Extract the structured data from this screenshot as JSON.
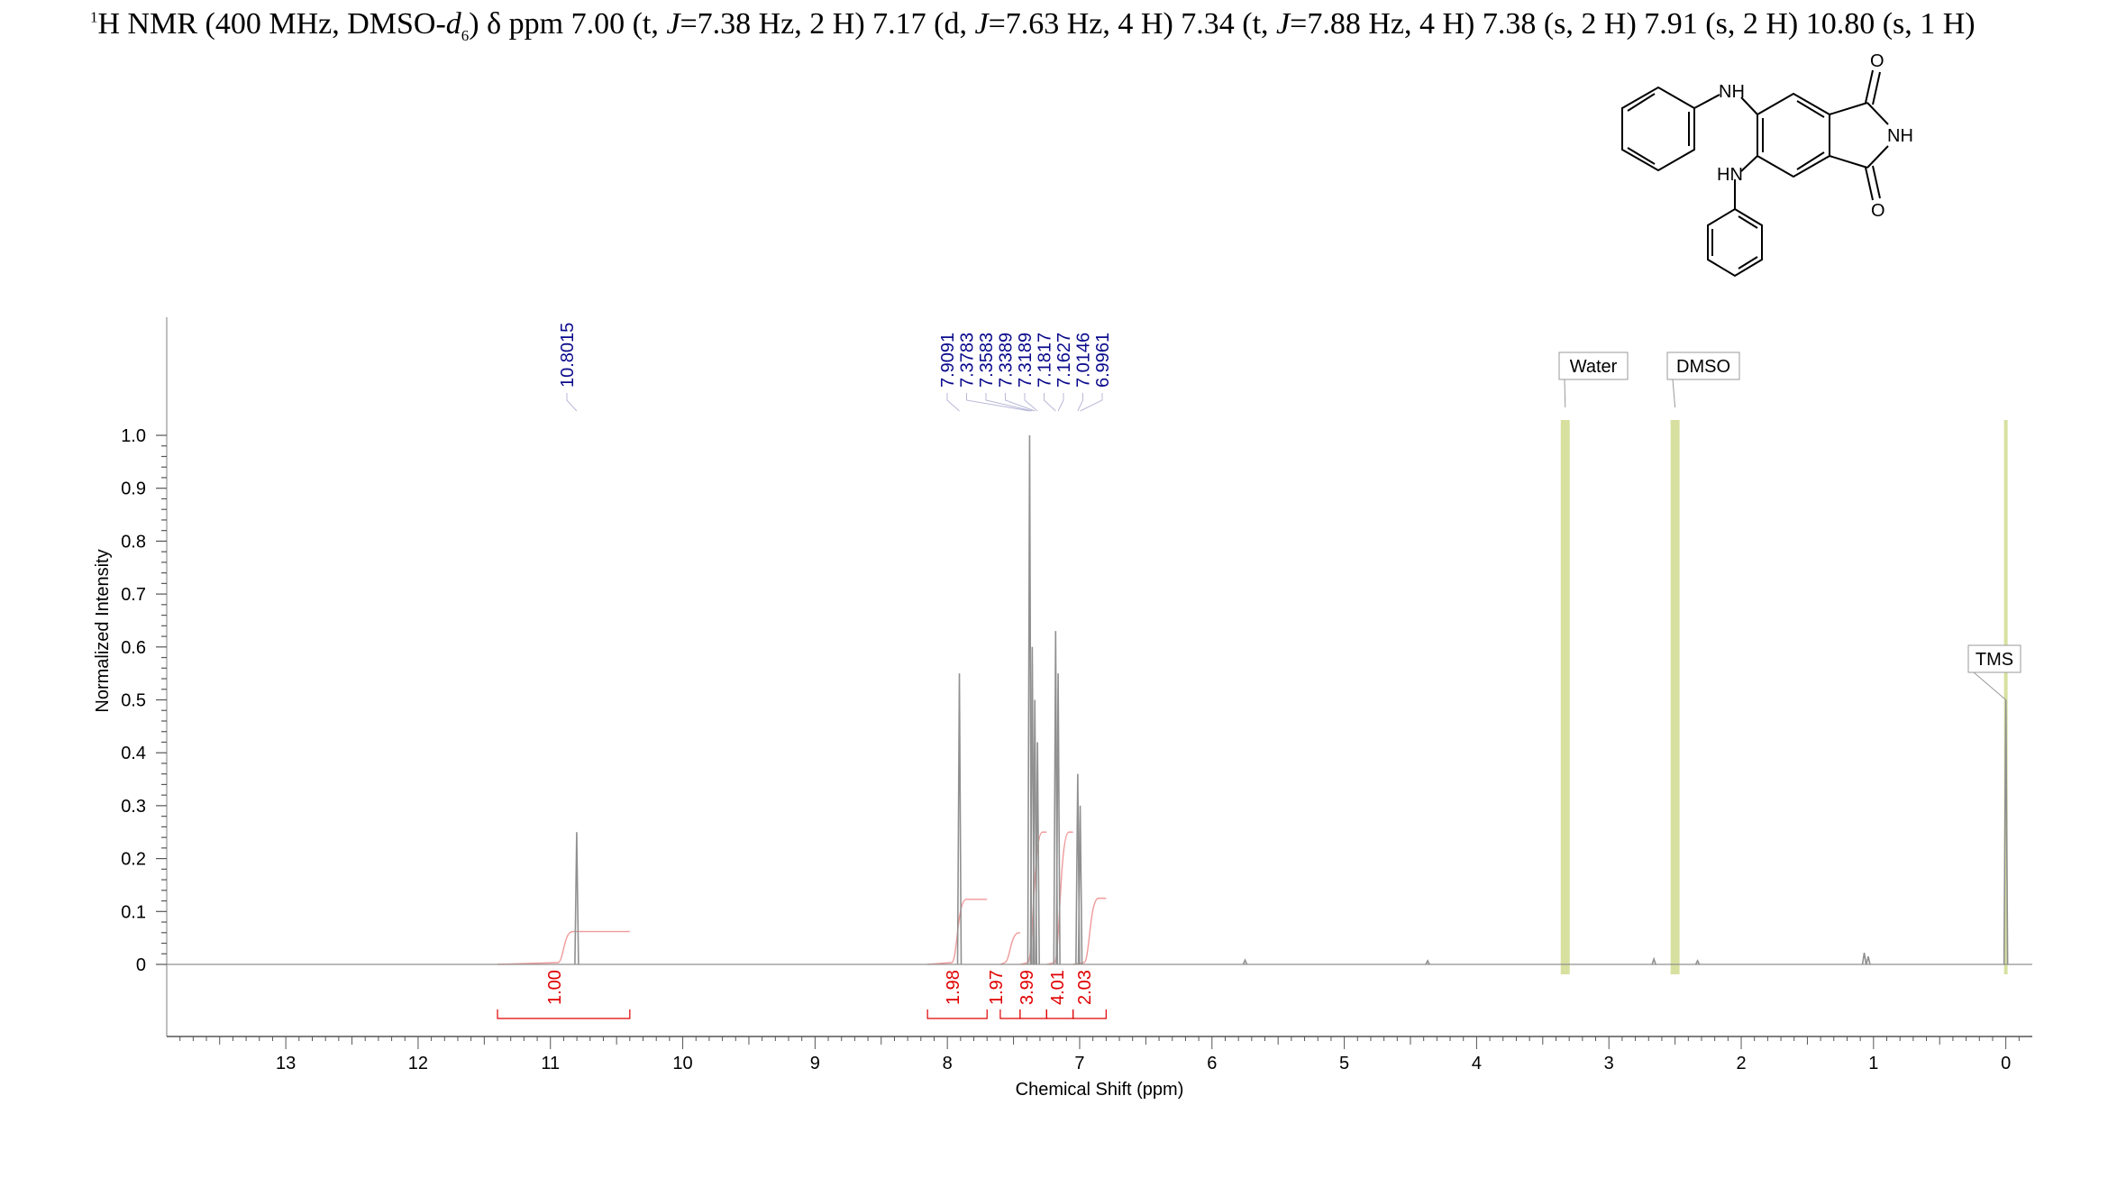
{
  "header": {
    "nucleus_sup": "1",
    "nucleus": "H NMR (400 MHz, DMSO-",
    "d": "d",
    "sub": "6",
    "rest_a": ") δ ppm 7.00 (t, ",
    "j1": "J",
    "rest_b": "=7.38 Hz, 2 H) 7.17 (d, ",
    "j2": "J",
    "rest_c": "=7.63 Hz, 4 H) 7.34 (t, ",
    "j3": "J",
    "rest_d": "=7.88 Hz, 4 H) 7.38 (s, 2 H) 7.91 (s, 2 H) 10.80 (s, 1 H)"
  },
  "structure_labels": {
    "nh_top": "NH",
    "nh_bottom": "HN",
    "nh_imide": "NH",
    "o_top": "O",
    "o_bottom": "O"
  },
  "colors": {
    "spectrum": "#909090",
    "peak_labels": "#0a0a8c",
    "integrals": "#e00000",
    "integral_curve": "#f09a9a",
    "solvent_band": "#d8e0a0",
    "axis": "#555555"
  },
  "chart_data": {
    "type": "line",
    "title": "",
    "xlabel": "Chemical Shift (ppm)",
    "ylabel": "Normalized Intensity",
    "x_reversed": true,
    "xlim": [
      13.9,
      -0.2
    ],
    "ylim": [
      0,
      1.0
    ],
    "x_ticks": [
      13,
      12,
      11,
      10,
      9,
      8,
      7,
      6,
      5,
      4,
      3,
      2,
      1,
      0
    ],
    "y_ticks": [
      0,
      0.1,
      0.2,
      0.3,
      0.4,
      0.5,
      0.6,
      0.7,
      0.8,
      0.9,
      1.0
    ],
    "y_tick_labels": [
      "0",
      "0.1",
      "0.2",
      "0.3",
      "0.4",
      "0.5",
      "0.6",
      "0.7",
      "0.8",
      "0.9",
      "1.0"
    ],
    "peaks": [
      {
        "ppm": 10.8015,
        "height": 0.25
      },
      {
        "ppm": 7.9091,
        "height": 0.55
      },
      {
        "ppm": 7.3783,
        "height": 1.0
      },
      {
        "ppm": 7.3583,
        "height": 0.6
      },
      {
        "ppm": 7.3389,
        "height": 0.5
      },
      {
        "ppm": 7.3189,
        "height": 0.42
      },
      {
        "ppm": 7.1817,
        "height": 0.63
      },
      {
        "ppm": 7.1627,
        "height": 0.55
      },
      {
        "ppm": 7.0146,
        "height": 0.36
      },
      {
        "ppm": 6.9961,
        "height": 0.3
      },
      {
        "ppm": 5.75,
        "height": 0.008
      },
      {
        "ppm": 4.37,
        "height": 0.007
      },
      {
        "ppm": 2.66,
        "height": 0.01
      },
      {
        "ppm": 2.33,
        "height": 0.007
      },
      {
        "ppm": 1.07,
        "height": 0.022
      },
      {
        "ppm": 1.04,
        "height": 0.015
      },
      {
        "ppm": 0.0,
        "height": 0.5
      }
    ],
    "peak_labels": [
      "10.8015",
      "7.9091",
      "7.3783",
      "7.3583",
      "7.3389",
      "7.3189",
      "7.1817",
      "7.1627",
      "7.0146",
      "6.9961"
    ],
    "integrals": [
      {
        "from": 11.4,
        "to": 10.4,
        "value": "1.00",
        "curve_height": 0.062
      },
      {
        "from": 8.15,
        "to": 7.7,
        "value": "1.98",
        "curve_height": 0.123
      },
      {
        "from": 7.6,
        "to": 7.45,
        "value": "1.97",
        "curve_height": 0.06
      },
      {
        "from": 7.45,
        "to": 7.25,
        "value": "3.99",
        "curve_height": 0.25
      },
      {
        "from": 7.25,
        "to": 7.05,
        "value": "4.01",
        "curve_height": 0.25
      },
      {
        "from": 7.05,
        "to": 6.8,
        "value": "2.03",
        "curve_height": 0.125
      }
    ],
    "annotations": [
      {
        "label": "Water",
        "ppm": 3.33
      },
      {
        "label": "DMSO",
        "ppm": 2.5
      },
      {
        "label": "TMS",
        "ppm": 0.0
      }
    ]
  }
}
